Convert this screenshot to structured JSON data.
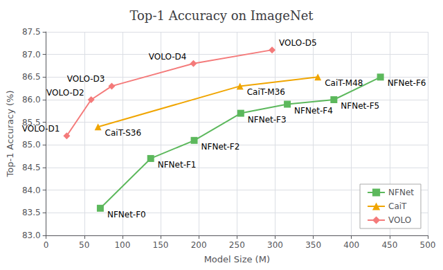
{
  "chart_data": {
    "type": "line",
    "title": "Top-1 Accuracy on ImageNet",
    "xlabel": "Model Size (M)",
    "ylabel": "Top-1 Accuracy (%)",
    "xlim": [
      0,
      500
    ],
    "ylim": [
      83,
      87.5
    ],
    "xticks": [
      0,
      50,
      100,
      150,
      200,
      250,
      300,
      350,
      400,
      450,
      500
    ],
    "yticks": [
      {
        "value": 83,
        "label": "83.0"
      },
      83.5,
      {
        "value": 84,
        "label": "84.0"
      },
      84.5,
      {
        "value": 85,
        "label": "85.0"
      },
      85.5,
      {
        "value": 86,
        "label": "86.0"
      },
      86.5,
      {
        "value": 87,
        "label": "87.0"
      },
      87.5
    ],
    "grid": true,
    "legend": "lower right",
    "series": [
      {
        "name": "NFNet",
        "color": "#5cb85c",
        "marker": "square",
        "x": [
          71,
          137,
          194,
          255,
          316,
          377,
          438
        ],
        "values": [
          83.6,
          84.7,
          85.1,
          85.7,
          85.9,
          86.0,
          86.5
        ],
        "labels": [
          "NFNet-F0",
          "NFNet-F1",
          "NFNet-F2",
          "NFNet-F3",
          "NFNet-F4",
          "NFNet-F5",
          "NFNet-F6"
        ]
      },
      {
        "name": "CaiT",
        "color": "#f0a500",
        "marker": "triangle",
        "x": [
          68,
          254,
          356
        ],
        "values": [
          85.4,
          86.3,
          86.5
        ],
        "labels": [
          "CaiT-S36",
          "CaiT-M36",
          "CaiT-M48"
        ]
      },
      {
        "name": "VOLO",
        "color": "#f47a7a",
        "marker": "diamond",
        "x": [
          27,
          59,
          86,
          193,
          296
        ],
        "values": [
          85.2,
          86.0,
          86.3,
          86.8,
          87.1
        ],
        "labels": [
          "VOLO-D1",
          "VOLO-D2",
          "VOLO-D3",
          "VOLO-D4",
          "VOLO-D5"
        ]
      }
    ]
  }
}
